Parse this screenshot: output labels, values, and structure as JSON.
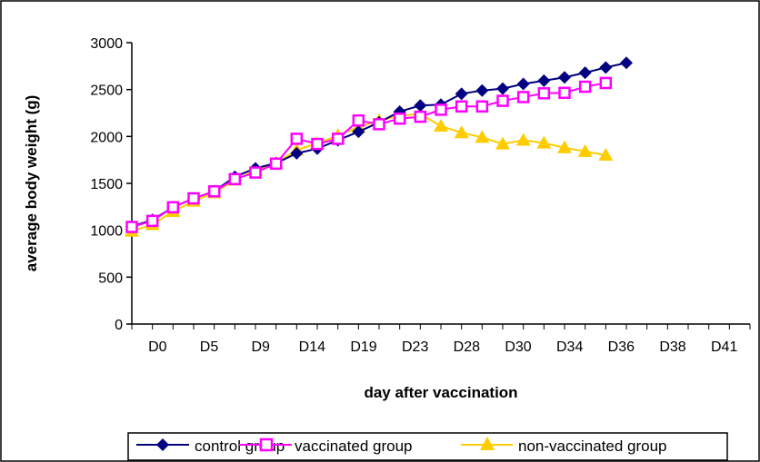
{
  "chart_data": {
    "type": "line",
    "title": "",
    "xlabel": "day after vaccination",
    "ylabel": "average body weight (g)",
    "ylim": [
      0,
      3000
    ],
    "y_ticks": [
      0,
      500,
      1000,
      1500,
      2000,
      2500,
      3000
    ],
    "grid": false,
    "legend_position": "bottom",
    "x_tick_labels": [
      "D0",
      "D5",
      "D9",
      "D14",
      "D19",
      "D23",
      "D28",
      "D30",
      "D34",
      "D36",
      "D38",
      "D41"
    ],
    "x_count": 31,
    "series": [
      {
        "name": "control group",
        "color": "#000080",
        "marker": "diamond",
        "values": [
          1040,
          1110,
          1245,
          1340,
          1415,
          1570,
          1660,
          1715,
          1820,
          1870,
          1960,
          2050,
          2150,
          2265,
          2330,
          2340,
          2455,
          2490,
          2510,
          2560,
          2595,
          2630,
          2680,
          2735,
          2785
        ]
      },
      {
        "name": "vaccinated group",
        "color": "#FF00FF",
        "marker": "square",
        "values": [
          1035,
          1100,
          1245,
          1340,
          1415,
          1545,
          1615,
          1710,
          1975,
          1920,
          1975,
          2170,
          2130,
          2190,
          2210,
          2285,
          2320,
          2320,
          2380,
          2420,
          2460,
          2465,
          2530,
          2570
        ]
      },
      {
        "name": "non-vaccinated group",
        "color": "#FFCC00",
        "marker": "triangle",
        "values": [
          990,
          1060,
          1200,
          1310,
          1400,
          1535,
          1640,
          1715,
          1855,
          1925,
          2010,
          2100,
          2170,
          2220,
          2240,
          2110,
          2040,
          1990,
          1920,
          1960,
          1930,
          1880,
          1840,
          1800
        ]
      }
    ]
  }
}
